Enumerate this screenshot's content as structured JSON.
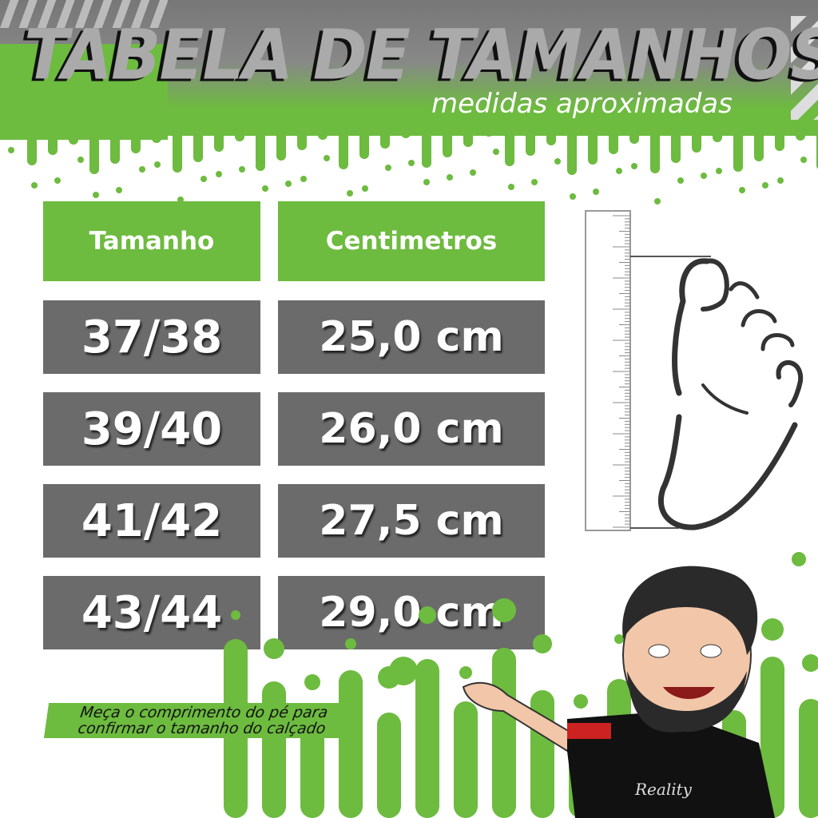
{
  "header": {
    "title": "TABELA DE TAMANHOS",
    "subtitle": "medidas aproximadas"
  },
  "table": {
    "headers": [
      "Tamanho",
      "Centimetros"
    ],
    "rows": [
      {
        "size": "37/38",
        "cm": "25,0 cm"
      },
      {
        "size": "39/40",
        "cm": "26,0 cm"
      },
      {
        "size": "41/42",
        "cm": "27,5 cm"
      },
      {
        "size": "43/44",
        "cm": "29,0 cm"
      }
    ]
  },
  "note": {
    "line1": "Meça o comprimento do pé para",
    "line2": "confirmar o tamanho do calçado"
  },
  "illustration": {
    "ruler": "ruler-icon",
    "foot": "foot-outline",
    "mascot": "bearded-man-avatar",
    "shirt_text": "Reality"
  },
  "colors": {
    "green": "#6dbb3f",
    "gray_cell": "#6b6b6b",
    "header_gray": "#777777"
  }
}
